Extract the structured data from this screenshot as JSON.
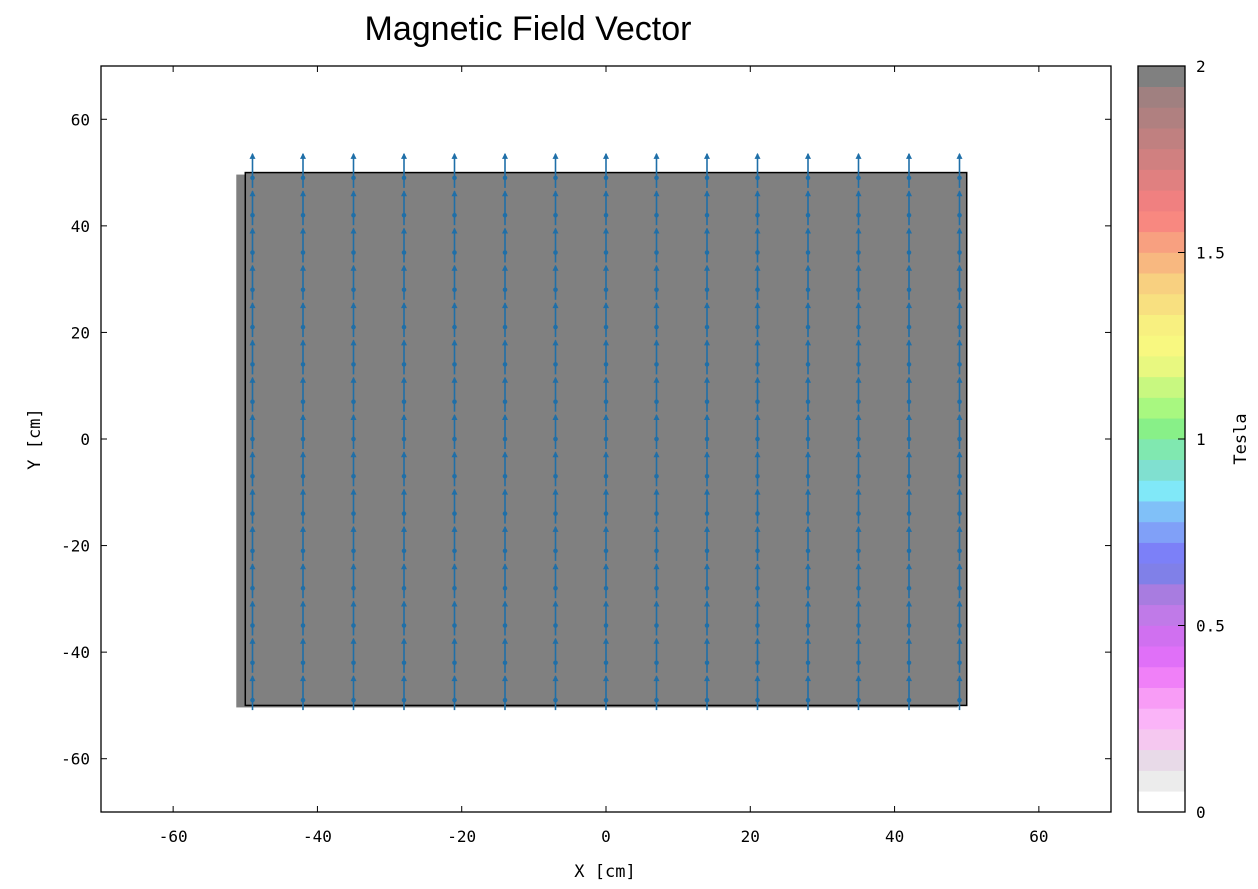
{
  "chart_data": {
    "type": "vector-field",
    "title": "Magnetic Field Vector",
    "xlabel": "X [cm]",
    "ylabel": "Y [cm]",
    "xlim": [
      -70,
      70
    ],
    "ylim": [
      -70,
      70
    ],
    "xticks": [
      -60,
      -40,
      -20,
      0,
      20,
      40,
      60
    ],
    "yticks": [
      -60,
      -40,
      -20,
      0,
      20,
      40,
      60
    ],
    "region": {
      "x": [
        -50,
        50
      ],
      "y": [
        -50,
        50
      ],
      "fill": "#808080",
      "field_tesla": 2
    },
    "vectors": {
      "x": [
        -49,
        -42,
        -35,
        -28,
        -21,
        -14,
        -7,
        0,
        7,
        14,
        21,
        28,
        35,
        42,
        49
      ],
      "y": [
        -49,
        -42,
        -35,
        -28,
        -21,
        -14,
        -7,
        0,
        7,
        14,
        21,
        28,
        35,
        42,
        49
      ],
      "direction": "+y",
      "magnitude_tesla": 2,
      "color": "#1f6fa8"
    },
    "colorbar": {
      "label": "Tesla",
      "min": 0,
      "max": 2,
      "ticks": [
        "0",
        "0.5",
        "1",
        "1.5",
        "2"
      ],
      "colors": [
        "#ffffff",
        "#ececec",
        "#e8dae8",
        "#f5c8f0",
        "#fab4f8",
        "#f89cf6",
        "#f080f8",
        "#e070f8",
        "#d070f0",
        "#c07ae8",
        "#a87ce0",
        "#8080e8",
        "#7c80f8",
        "#80a0f8",
        "#80c0f8",
        "#80e8f8",
        "#80e0d0",
        "#80e8b0",
        "#88f088",
        "#a8f880",
        "#c8f880",
        "#e8f880",
        "#f8f880",
        "#f8f080",
        "#f8e080",
        "#f8d080",
        "#f8b880",
        "#f8a080",
        "#f88880",
        "#f08080",
        "#e08080",
        "#d08080",
        "#c08080",
        "#b08080",
        "#a08080",
        "#808080"
      ]
    }
  }
}
